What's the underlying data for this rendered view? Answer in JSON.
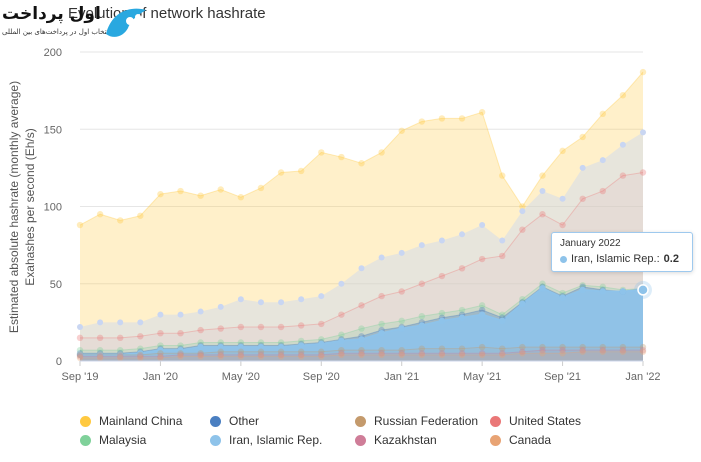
{
  "branding": {
    "logo_text": "اول پرداخت",
    "logo_subtitle": "انتخاب اول در پرداخت‌های بین المللی"
  },
  "chart_data": {
    "type": "area",
    "title": "Evolution of network hashrate",
    "ylabel": "Estimated absolute hashrate (monthly average)",
    "ylabel2": "Exahashes per second (Eh/s)",
    "xlabel": "",
    "x": [
      "Sep '19",
      "Oct '19",
      "Nov '19",
      "Dec '19",
      "Jan '20",
      "Feb '20",
      "Mar '20",
      "Apr '20",
      "May '20",
      "Jun '20",
      "Jul '20",
      "Aug '20",
      "Sep '20",
      "Oct '20",
      "Nov '20",
      "Dec '20",
      "Jan '21",
      "Feb '21",
      "Mar '21",
      "Apr '21",
      "May '21",
      "Jun '21",
      "Jul '21",
      "Aug '21",
      "Sep '21",
      "Oct '21",
      "Nov '21",
      "Dec '21",
      "Jan '22"
    ],
    "x_tick_labels": [
      "Sep '19",
      "Jan '20",
      "May '20",
      "Sep '20",
      "Jan '21",
      "May '21",
      "Sep '21",
      "Jan '22"
    ],
    "x_tick_indices": [
      0,
      4,
      8,
      12,
      16,
      20,
      24,
      28
    ],
    "ylim": [
      0,
      200
    ],
    "yticks": [
      0,
      50,
      100,
      150,
      200
    ],
    "grid": true,
    "legend_position": "bottom",
    "stacking_note": "stacked area, values are cumulative top of each layer in Eh/s",
    "series": [
      {
        "name": "Canada",
        "color": "#e8a374",
        "values": [
          2,
          2,
          2,
          2,
          2,
          3,
          3,
          3,
          3,
          3,
          3,
          3,
          3,
          4,
          4,
          4,
          4,
          4,
          4,
          4,
          4,
          4,
          5,
          5,
          5,
          6,
          6,
          6,
          6
        ]
      },
      {
        "name": "Kazakhstan",
        "color": "#cf7d98",
        "values": [
          3,
          3,
          3,
          3,
          3,
          4,
          4,
          4,
          4,
          4,
          4,
          4,
          4,
          5,
          5,
          5,
          5,
          5,
          5,
          5,
          5,
          5,
          6,
          7,
          7,
          7,
          7,
          7,
          7
        ]
      },
      {
        "name": "Russian Federation",
        "color": "#c49a6c",
        "values": [
          4,
          4,
          4,
          4,
          5,
          5,
          5,
          6,
          6,
          6,
          6,
          6,
          6,
          7,
          7,
          7,
          7,
          8,
          8,
          8,
          9,
          8,
          9,
          9,
          9,
          9,
          9,
          9,
          9
        ]
      },
      {
        "name": "Iran, Islamic Rep.",
        "color": "#8ec3ea",
        "values": [
          4,
          4,
          4,
          5,
          7,
          7,
          9,
          9,
          9,
          9,
          9,
          10,
          11,
          13,
          14,
          18,
          21,
          23,
          26,
          28,
          30,
          26,
          37,
          47,
          41,
          46,
          45,
          45,
          46
        ]
      },
      {
        "name": "Other",
        "color": "#4a7fc1",
        "values": [
          5,
          5,
          5,
          6,
          8,
          8,
          10,
          10,
          10,
          10,
          10,
          11,
          12,
          14,
          16,
          20,
          22,
          25,
          28,
          30,
          33,
          28,
          38,
          48,
          42,
          48,
          46,
          45,
          47
        ]
      },
      {
        "name": "Malaysia",
        "color": "#7fd19a",
        "values": [
          7,
          7,
          7,
          8,
          10,
          10,
          12,
          12,
          12,
          12,
          12,
          13,
          14,
          17,
          21,
          24,
          26,
          29,
          31,
          33,
          36,
          30,
          40,
          50,
          44,
          49,
          48,
          46,
          47
        ]
      },
      {
        "name": "United States",
        "color": "#ea7777",
        "values": [
          15,
          15,
          15,
          16,
          18,
          18,
          20,
          21,
          22,
          22,
          22,
          23,
          24,
          30,
          36,
          42,
          45,
          50,
          55,
          60,
          66,
          68,
          85,
          95,
          88,
          105,
          110,
          120,
          122
        ]
      },
      {
        "name": "Mainland China",
        "color": "#ffc940",
        "values": [
          88,
          95,
          91,
          94,
          108,
          110,
          107,
          111,
          106,
          112,
          122,
          123,
          135,
          132,
          128,
          135,
          149,
          155,
          157,
          157,
          161,
          120,
          100,
          120,
          136,
          145,
          160,
          172,
          187
        ]
      }
    ],
    "upper_band_values": [
      22,
      25,
      25,
      25,
      30,
      30,
      32,
      35,
      40,
      38,
      38,
      40,
      42,
      50,
      60,
      67,
      70,
      75,
      78,
      82,
      88,
      78,
      97,
      110,
      105,
      125,
      130,
      140,
      148
    ],
    "tooltip": {
      "date": "January 2022",
      "series": "Iran, Islamic Rep.",
      "value_label": "0.2",
      "index": 28
    }
  },
  "legend": {
    "items": [
      {
        "label": "Mainland China",
        "color": "#ffc940"
      },
      {
        "label": "Other",
        "color": "#4a7fc1"
      },
      {
        "label": "Russian Federation",
        "color": "#c49a6c"
      },
      {
        "label": "United States",
        "color": "#ea7777"
      },
      {
        "label": "Malaysia",
        "color": "#7fd19a"
      },
      {
        "label": "Iran, Islamic Rep.",
        "color": "#8ec3ea"
      },
      {
        "label": "Kazakhstan",
        "color": "#cf7d98"
      },
      {
        "label": "Canada",
        "color": "#e8a374"
      }
    ]
  }
}
